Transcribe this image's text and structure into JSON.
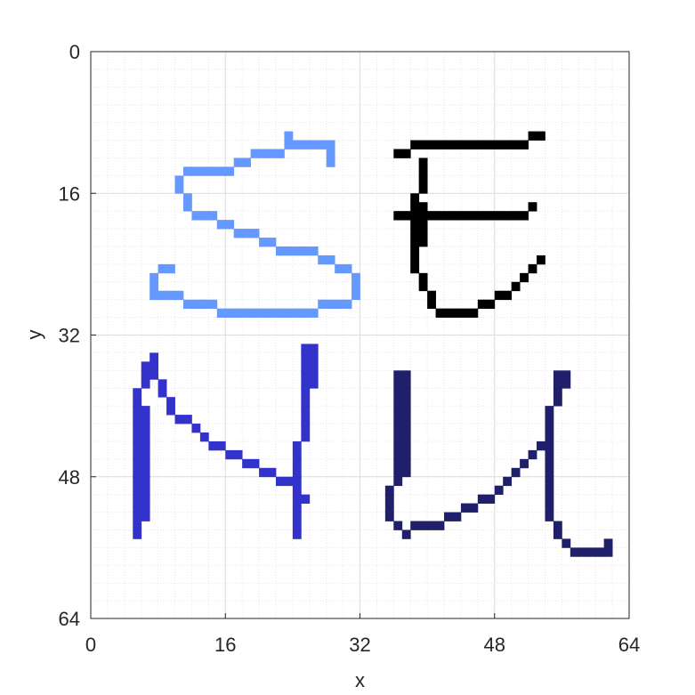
{
  "chart_data": {
    "type": "heatmap",
    "title": "",
    "xlabel": "x",
    "ylabel": "y",
    "xlim": [
      0,
      64
    ],
    "ylim": [
      0,
      64
    ],
    "y_reversed": true,
    "grid": "major and minor",
    "x_ticks": [
      "0",
      "16",
      "32",
      "48",
      "64"
    ],
    "y_ticks": [
      "0",
      "16",
      "32",
      "48",
      "64"
    ],
    "series": [
      {
        "color": "#6699ff",
        "strokes": [
          [
            [
              23,
              9
            ],
            [
              22,
              11
            ],
            [
              20,
              11
            ],
            [
              17,
              12
            ],
            [
              15,
              13
            ],
            [
              13,
              13
            ],
            [
              11,
              13
            ],
            [
              10,
              14
            ],
            [
              10,
              15
            ],
            [
              11,
              16
            ],
            [
              11,
              17
            ],
            [
              12,
              18
            ],
            [
              13,
              18
            ],
            [
              14,
              18
            ],
            [
              16,
              19
            ],
            [
              18,
              20
            ],
            [
              21,
              21
            ],
            [
              23,
              22
            ],
            [
              26,
              22
            ],
            [
              28,
              23
            ],
            [
              30,
              24
            ],
            [
              31,
              26
            ],
            [
              30,
              28
            ],
            [
              28,
              28
            ],
            [
              25,
              29
            ],
            [
              22,
              29
            ],
            [
              19,
              29
            ],
            [
              16,
              29
            ],
            [
              14,
              28
            ],
            [
              12,
              28
            ],
            [
              9,
              27
            ],
            [
              7,
              27
            ],
            [
              7,
              26
            ],
            [
              7,
              25
            ],
            [
              8,
              24
            ],
            [
              9,
              24
            ]
          ],
          [
            [
              23,
              10
            ],
            [
              26,
              10
            ],
            [
              28,
              10
            ],
            [
              28,
              12
            ]
          ]
        ]
      },
      {
        "color": "#000000",
        "strokes": [
          [
            [
              36,
              11
            ],
            [
              39,
              10
            ],
            [
              43,
              10
            ],
            [
              47,
              10
            ],
            [
              50,
              10
            ],
            [
              53,
              9
            ]
          ],
          [
            [
              39,
              12
            ],
            [
              39,
              14
            ],
            [
              38,
              16
            ],
            [
              38,
              18
            ],
            [
              38,
              20
            ],
            [
              38,
              22
            ],
            [
              38,
              24
            ],
            [
              39,
              26
            ],
            [
              40,
              28
            ],
            [
              42,
              29
            ],
            [
              44,
              29
            ],
            [
              46,
              28
            ],
            [
              48,
              27
            ],
            [
              50,
              26
            ],
            [
              52,
              24
            ],
            [
              53,
              23
            ]
          ],
          [
            [
              36,
              18
            ],
            [
              39,
              18
            ],
            [
              43,
              18
            ],
            [
              47,
              18
            ],
            [
              50,
              18
            ],
            [
              52,
              17
            ]
          ],
          [
            [
              39,
              17
            ],
            [
              39,
              19
            ],
            [
              39,
              21
            ]
          ]
        ]
      },
      {
        "color": "#3333cc",
        "strokes": [
          [
            [
              5,
              54
            ],
            [
              5,
              50
            ],
            [
              5,
              46
            ],
            [
              5,
              42
            ],
            [
              5,
              38
            ],
            [
              6,
              37
            ],
            [
              6,
              35
            ],
            [
              7,
              34
            ],
            [
              7,
              36
            ],
            [
              8,
              38
            ],
            [
              9,
              40
            ],
            [
              11,
              41
            ],
            [
              12,
              42
            ],
            [
              13,
              43
            ],
            [
              15,
              44
            ],
            [
              17,
              45
            ],
            [
              19,
              46
            ],
            [
              21,
              47
            ],
            [
              23,
              48
            ],
            [
              24,
              49
            ],
            [
              25,
              50
            ]
          ],
          [
            [
              6,
              52
            ],
            [
              6,
              48
            ],
            [
              6,
              44
            ],
            [
              6,
              40
            ]
          ],
          [
            [
              24,
              54
            ],
            [
              24,
              51
            ],
            [
              24,
              48
            ],
            [
              24,
              45
            ],
            [
              25,
              42
            ],
            [
              25,
              39
            ],
            [
              25,
              36
            ],
            [
              25,
              33
            ],
            [
              26,
              33
            ],
            [
              26,
              37
            ]
          ]
        ]
      },
      {
        "color": "#1f1f6b",
        "strokes": [
          [
            [
              36,
              36
            ],
            [
              36,
              40
            ],
            [
              36,
              44
            ],
            [
              36,
              47
            ],
            [
              35,
              49
            ],
            [
              35,
              52
            ],
            [
              36,
              53
            ],
            [
              37,
              54
            ],
            [
              38,
              53
            ],
            [
              40,
              53
            ],
            [
              42,
              52
            ],
            [
              44,
              51
            ],
            [
              46,
              50
            ],
            [
              48,
              49
            ],
            [
              50,
              47
            ],
            [
              52,
              45
            ],
            [
              53,
              44
            ],
            [
              54,
              42
            ],
            [
              54,
              40
            ],
            [
              55,
              38
            ],
            [
              55,
              36
            ],
            [
              56,
              36
            ],
            [
              56,
              37
            ]
          ],
          [
            [
              37,
              36
            ],
            [
              37,
              40
            ],
            [
              37,
              44
            ],
            [
              37,
              47
            ]
          ],
          [
            [
              54,
              43
            ],
            [
              54,
              46
            ],
            [
              54,
              49
            ],
            [
              54,
              52
            ],
            [
              55,
              54
            ],
            [
              56,
              55
            ],
            [
              57,
              56
            ],
            [
              58,
              56
            ],
            [
              60,
              56
            ],
            [
              61,
              56
            ],
            [
              61,
              55
            ]
          ]
        ]
      }
    ]
  }
}
